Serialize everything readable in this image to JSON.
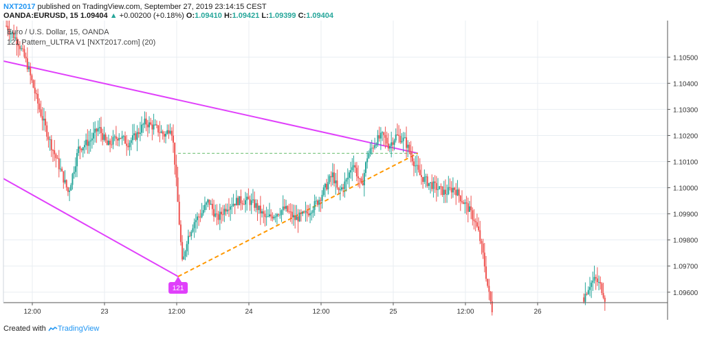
{
  "header": {
    "author": "NXT2017",
    "published": "published on TradingView.com, September 27, 2019 23:14:15 CEST",
    "symbol": "OANDA:EURUSD, 15",
    "last": "1.09404",
    "change_arrow": "▲",
    "change": "+0.00200 (+0.18%)",
    "o_label": "O:",
    "o_value": "1.09410",
    "h_label": "H:",
    "h_value": "1.09421",
    "l_label": "L:",
    "l_value": "1.09399",
    "c_label": "C:",
    "c_value": "1.09404"
  },
  "legend": {
    "series": "Euro / U.S. Dollar, 15, OANDA",
    "indicator": "121 Pattern_ULTRA V1 [NXT2017.com] (20)"
  },
  "footer": {
    "created_with": "Created with",
    "brand": "TradingView",
    "icon": "tradingview-logo-icon"
  },
  "colors": {
    "up": "#26a69a",
    "down": "#ef5350",
    "trend": "#e040fb",
    "projection": "#ff9800",
    "target": "#66bb6a",
    "grid": "#e8edf2"
  },
  "chart_data": {
    "type": "candlestick",
    "title": "Euro / U.S. Dollar, 15, OANDA",
    "xlabel": "",
    "ylabel": "",
    "ylim": [
      1.0956,
      1.1064
    ],
    "x_range_days": [
      22.3,
      26.9
    ],
    "y_ticks": [
      "1.10500",
      "1.10400",
      "1.10300",
      "1.10200",
      "1.10100",
      "1.10000",
      "1.09900",
      "1.09800",
      "1.09700",
      "1.09600"
    ],
    "y_tick_values": [
      1.105,
      1.104,
      1.103,
      1.102,
      1.101,
      1.1,
      1.099,
      1.098,
      1.097,
      1.096
    ],
    "x_ticks": [
      {
        "label": "12:00",
        "day": 22.5
      },
      {
        "label": "23",
        "day": 23.0
      },
      {
        "label": "12:00",
        "day": 23.5
      },
      {
        "label": "24",
        "day": 24.0
      },
      {
        "label": "12:00",
        "day": 24.5
      },
      {
        "label": "25",
        "day": 25.0
      },
      {
        "label": "12:00",
        "day": 25.5
      },
      {
        "label": "26",
        "day": 26.0
      }
    ],
    "grid": true,
    "price_path": [
      [
        22.32,
        1.1062
      ],
      [
        22.4,
        1.1056
      ],
      [
        22.46,
        1.1048
      ],
      [
        22.55,
        1.103
      ],
      [
        22.62,
        1.1018
      ],
      [
        22.7,
        1.1006
      ],
      [
        22.75,
        1.0998
      ],
      [
        22.82,
        1.1015
      ],
      [
        22.9,
        1.1018
      ],
      [
        22.96,
        1.1023
      ],
      [
        23.02,
        1.1016
      ],
      [
        23.1,
        1.102
      ],
      [
        23.16,
        1.1017
      ],
      [
        23.22,
        1.102
      ],
      [
        23.28,
        1.1025
      ],
      [
        23.35,
        1.1023
      ],
      [
        23.42,
        1.102
      ],
      [
        23.46,
        1.1024
      ],
      [
        23.48,
        1.1015
      ],
      [
        23.5,
        1.1
      ],
      [
        23.52,
        1.0985
      ],
      [
        23.54,
        1.097
      ],
      [
        23.57,
        1.098
      ],
      [
        23.62,
        1.0987
      ],
      [
        23.67,
        1.099
      ],
      [
        23.72,
        1.0995
      ],
      [
        23.78,
        1.0988
      ],
      [
        23.85,
        1.0993
      ],
      [
        23.92,
        1.0995
      ],
      [
        24.0,
        1.0995
      ],
      [
        24.05,
        1.0993
      ],
      [
        24.12,
        1.0988
      ],
      [
        24.18,
        1.099
      ],
      [
        24.25,
        1.0992
      ],
      [
        24.32,
        1.0988
      ],
      [
        24.4,
        1.099
      ],
      [
        24.48,
        1.0995
      ],
      [
        24.53,
        1.1
      ],
      [
        24.58,
        1.1005
      ],
      [
        24.62,
        1.0998
      ],
      [
        24.68,
        1.1003
      ],
      [
        24.72,
        1.101
      ],
      [
        24.78,
        1.1
      ],
      [
        24.82,
        1.1012
      ],
      [
        24.88,
        1.1018
      ],
      [
        24.93,
        1.102
      ],
      [
        24.97,
        1.1016
      ],
      [
        25.02,
        1.102
      ],
      [
        25.08,
        1.1018
      ],
      [
        25.12,
        1.1013
      ],
      [
        25.18,
        1.1005
      ],
      [
        25.24,
        1.1002
      ],
      [
        25.3,
        1.1
      ],
      [
        25.36,
        1.0998
      ],
      [
        25.42,
        1.1
      ],
      [
        25.48,
        1.0995
      ],
      [
        25.52,
        1.0992
      ],
      [
        25.56,
        1.0988
      ],
      [
        25.59,
        1.0983
      ],
      [
        25.62,
        1.0975
      ],
      [
        25.66,
        1.096
      ],
      [
        25.69,
        1.0952
      ]
    ],
    "price_path_tail": [
      [
        26.32,
        1.0958
      ],
      [
        26.36,
        1.0963
      ],
      [
        26.4,
        1.0965
      ],
      [
        26.44,
        1.0962
      ],
      [
        26.47,
        1.0957
      ]
    ],
    "annotations": [
      {
        "name": "upper-trendline",
        "from": [
          22.3,
          1.10485
        ],
        "to": [
          25.17,
          1.10132
        ]
      },
      {
        "name": "lower-trendline",
        "from": [
          22.3,
          1.10035
        ],
        "to": [
          23.51,
          1.0966
        ]
      },
      {
        "name": "projection-line",
        "from": [
          23.51,
          1.0966
        ],
        "to": [
          25.17,
          1.10132
        ]
      },
      {
        "name": "target-level",
        "from": [
          23.51,
          1.10132
        ],
        "to": [
          25.17,
          1.10132
        ]
      }
    ],
    "pattern_label": {
      "text": "121",
      "day": 23.51,
      "price": 1.0966
    }
  }
}
